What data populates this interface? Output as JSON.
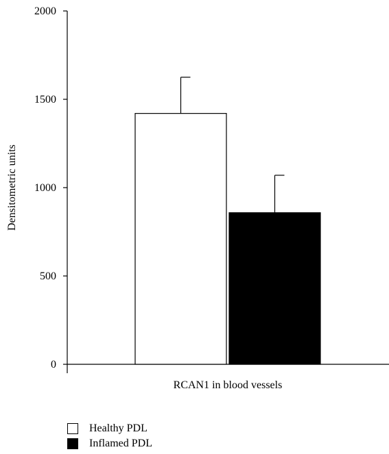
{
  "chart_data": {
    "type": "bar",
    "categories": [
      "Healthy PDL",
      "Inflamed PDL"
    ],
    "series": [
      {
        "name": "Healthy PDL",
        "value": 1420,
        "error": 205,
        "color": "#ffffff"
      },
      {
        "name": "Inflamed PDL",
        "value": 858,
        "error": 212,
        "color": "#000000"
      }
    ],
    "title": "",
    "xlabel": "RCAN1 in blood vessels",
    "ylabel": "Densitometric units",
    "ylim": [
      0,
      2000
    ],
    "yticks": [
      "0",
      "500",
      "1000",
      "1500",
      "2000"
    ],
    "grid": false,
    "legend_position": "bottom-left"
  }
}
